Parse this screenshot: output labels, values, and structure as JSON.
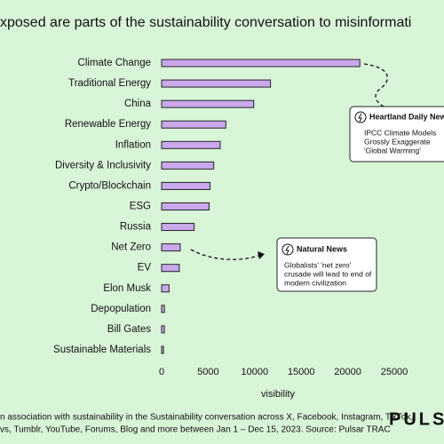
{
  "chart_data": {
    "type": "bar",
    "orientation": "horizontal",
    "title": "xposed are parts of the sustainability conversation to misinformati",
    "xlabel": "visibility",
    "categories": [
      "Climate Change",
      "Traditional Energy",
      "China",
      "Renewable Energy",
      "Inflation",
      "Diversity & Inclusivity",
      "Crypto/Blockchain",
      "ESG",
      "Russia",
      "Net Zero",
      "EV",
      "Elon Musk",
      "Depopulation",
      "Bill Gates",
      "Sustainable Materials"
    ],
    "values": [
      21300,
      11700,
      9900,
      6900,
      6300,
      5600,
      5200,
      5100,
      3500,
      2000,
      1900,
      800,
      300,
      300,
      200
    ],
    "color": "#c9a9ec",
    "xlim": [
      0,
      25000
    ],
    "xticks": [
      0,
      5000,
      10000,
      15000,
      20000,
      25000
    ],
    "grid": false,
    "annotations": [
      {
        "source": "Heartland Daily News",
        "lines": [
          "IPCC Climate Models",
          "Grossly Exaggerate",
          "'Global Warming'"
        ]
      },
      {
        "source": "Natural News",
        "lines": [
          "Globalists' 'net zero'",
          "crusade will lead to end of",
          "modern civilization"
        ]
      }
    ],
    "footnote": [
      "n association with sustainability in the Sustainability conversation across X, Facebook, Instagram, TikTok,",
      "vs, Tumblr, YouTube, Forums, Blog and more between Jan 1 – Dec 15, 2023. Source: Pulsar TRAC"
    ],
    "logo": "PULSA"
  }
}
